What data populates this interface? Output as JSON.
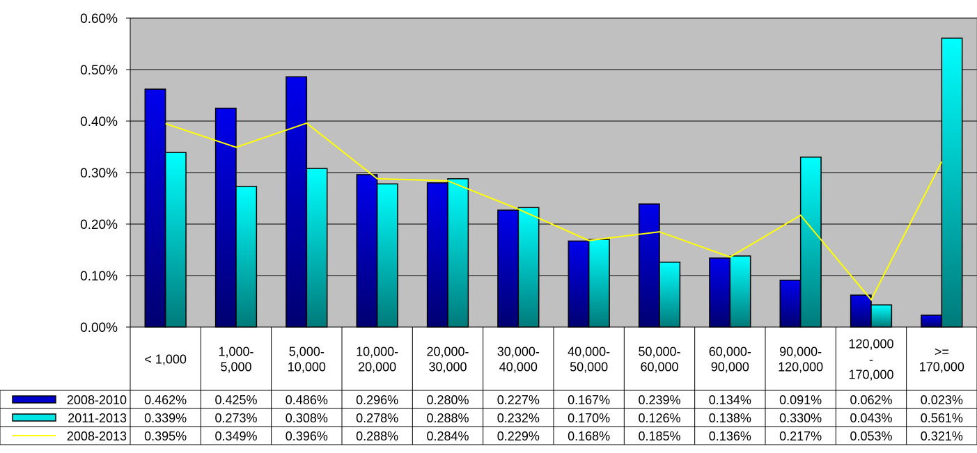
{
  "chart_data": {
    "type": "bar",
    "title": "",
    "xlabel": "",
    "ylabel": "",
    "ylim": [
      0,
      0.6
    ],
    "y_ticks": [
      "0.00%",
      "0.10%",
      "0.20%",
      "0.30%",
      "0.40%",
      "0.50%",
      "0.60%"
    ],
    "grid": true,
    "legend": "data-table-left",
    "categories": [
      [
        "< 1,000"
      ],
      [
        "1,000-",
        "5,000"
      ],
      [
        "5,000-",
        "10,000"
      ],
      [
        "10,000-",
        "20,000"
      ],
      [
        "20,000-",
        "30,000"
      ],
      [
        "30,000-",
        "40,000"
      ],
      [
        "40,000-",
        "50,000"
      ],
      [
        "50,000-",
        "60,000"
      ],
      [
        "60,000-",
        "90,000"
      ],
      [
        "90,000-",
        "120,000"
      ],
      [
        "120,000",
        "-",
        "170,000"
      ],
      [
        ">=",
        "170,000"
      ]
    ],
    "series": [
      {
        "name": "2008-2010",
        "type": "bar",
        "color": "#0000cc",
        "values": [
          0.462,
          0.425,
          0.486,
          0.296,
          0.28,
          0.227,
          0.167,
          0.239,
          0.134,
          0.091,
          0.062,
          0.023
        ],
        "labels": [
          "0.462%",
          "0.425%",
          "0.486%",
          "0.296%",
          "0.280%",
          "0.227%",
          "0.167%",
          "0.239%",
          "0.134%",
          "0.091%",
          "0.062%",
          "0.023%"
        ]
      },
      {
        "name": "2011-2013",
        "type": "bar",
        "color": "#00e5e5",
        "values": [
          0.339,
          0.273,
          0.308,
          0.278,
          0.288,
          0.232,
          0.17,
          0.126,
          0.138,
          0.33,
          0.043,
          0.561
        ],
        "labels": [
          "0.339%",
          "0.273%",
          "0.308%",
          "0.278%",
          "0.288%",
          "0.232%",
          "0.170%",
          "0.126%",
          "0.138%",
          "0.330%",
          "0.043%",
          "0.561%"
        ]
      },
      {
        "name": "2008-2013",
        "type": "line",
        "color": "#ffff00",
        "values": [
          0.395,
          0.349,
          0.396,
          0.288,
          0.284,
          0.229,
          0.168,
          0.185,
          0.136,
          0.217,
          0.053,
          0.321
        ],
        "labels": [
          "0.395%",
          "0.349%",
          "0.396%",
          "0.288%",
          "0.284%",
          "0.229%",
          "0.168%",
          "0.185%",
          "0.136%",
          "0.217%",
          "0.053%",
          "0.321%"
        ]
      }
    ]
  }
}
